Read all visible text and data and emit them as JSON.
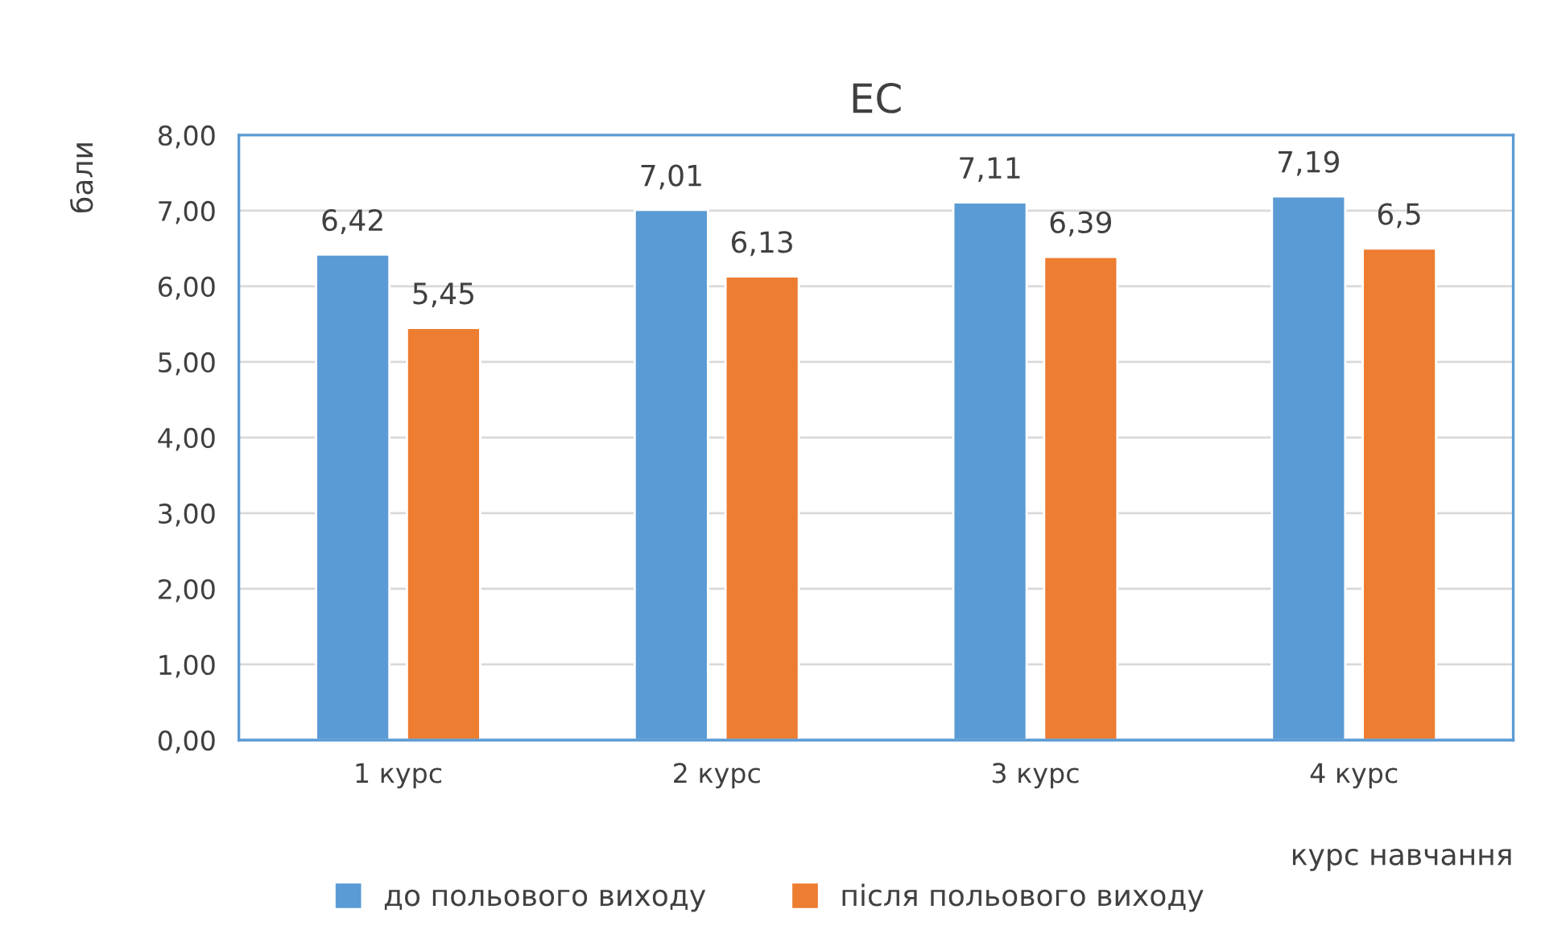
{
  "chart_data": {
    "type": "bar",
    "title": "ЕС",
    "ylabel": "бали",
    "xlabel": "курс навчання",
    "categories": [
      "1 курс",
      "2 курс",
      "3 курс",
      "4 курс"
    ],
    "series": [
      {
        "name": "до польового виходу",
        "color": "#5b9bd5",
        "values": [
          6.42,
          7.01,
          7.11,
          7.19
        ],
        "value_labels": [
          "6,42",
          "7,01",
          "7,11",
          "7,19"
        ]
      },
      {
        "name": "після польового виходу",
        "color": "#ed7d31",
        "values": [
          5.45,
          6.13,
          6.39,
          6.5
        ],
        "value_labels": [
          "5,45",
          "6,13",
          "6,39",
          "6,5"
        ]
      }
    ],
    "ylim": [
      0,
      8
    ],
    "yticks": [
      {
        "value": 0,
        "label": "0,00"
      },
      {
        "value": 1,
        "label": "1,00"
      },
      {
        "value": 2,
        "label": "2,00"
      },
      {
        "value": 3,
        "label": "3,00"
      },
      {
        "value": 4,
        "label": "4,00"
      },
      {
        "value": 5,
        "label": "5,00"
      },
      {
        "value": 6,
        "label": "6,00"
      },
      {
        "value": 7,
        "label": "7,00"
      },
      {
        "value": 8,
        "label": "8,00"
      }
    ],
    "grid": "y",
    "legend": "bottom"
  }
}
